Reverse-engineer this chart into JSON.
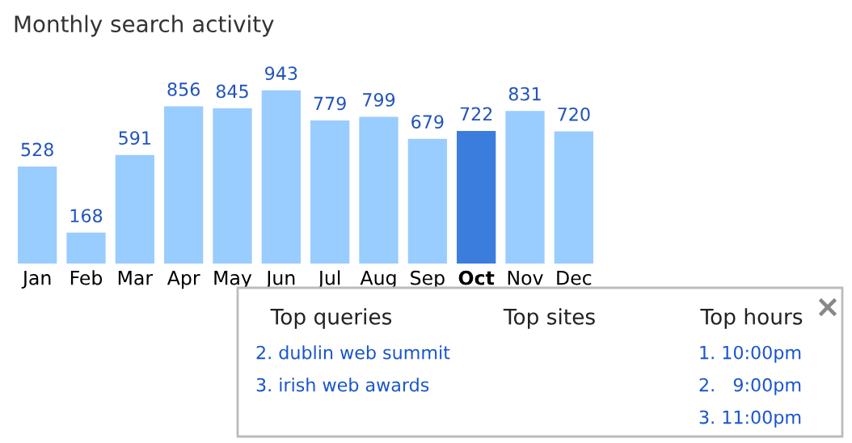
{
  "chart_data": {
    "type": "bar",
    "title": "Monthly search activity",
    "categories": [
      "Jan",
      "Feb",
      "Mar",
      "Apr",
      "May",
      "Jun",
      "Jul",
      "Aug",
      "Sep",
      "Oct",
      "Nov",
      "Dec"
    ],
    "values": [
      528,
      168,
      591,
      856,
      845,
      943,
      779,
      799,
      679,
      722,
      831,
      720
    ],
    "colors": [
      "#99ccff",
      "#99ccff",
      "#99ccff",
      "#99ccff",
      "#99ccff",
      "#99ccff",
      "#99ccff",
      "#99ccff",
      "#99ccff",
      "#3b7ddd",
      "#99ccff",
      "#99ccff"
    ],
    "data_labels": true,
    "annotations": [
      "Top queries\n2. dublin web summit\n3. irish web awards",
      "Top sites",
      "Top hours\n1. 10:00pm\n2.   9:00pm\n3. 11:00pm"
    ]
  }
}
